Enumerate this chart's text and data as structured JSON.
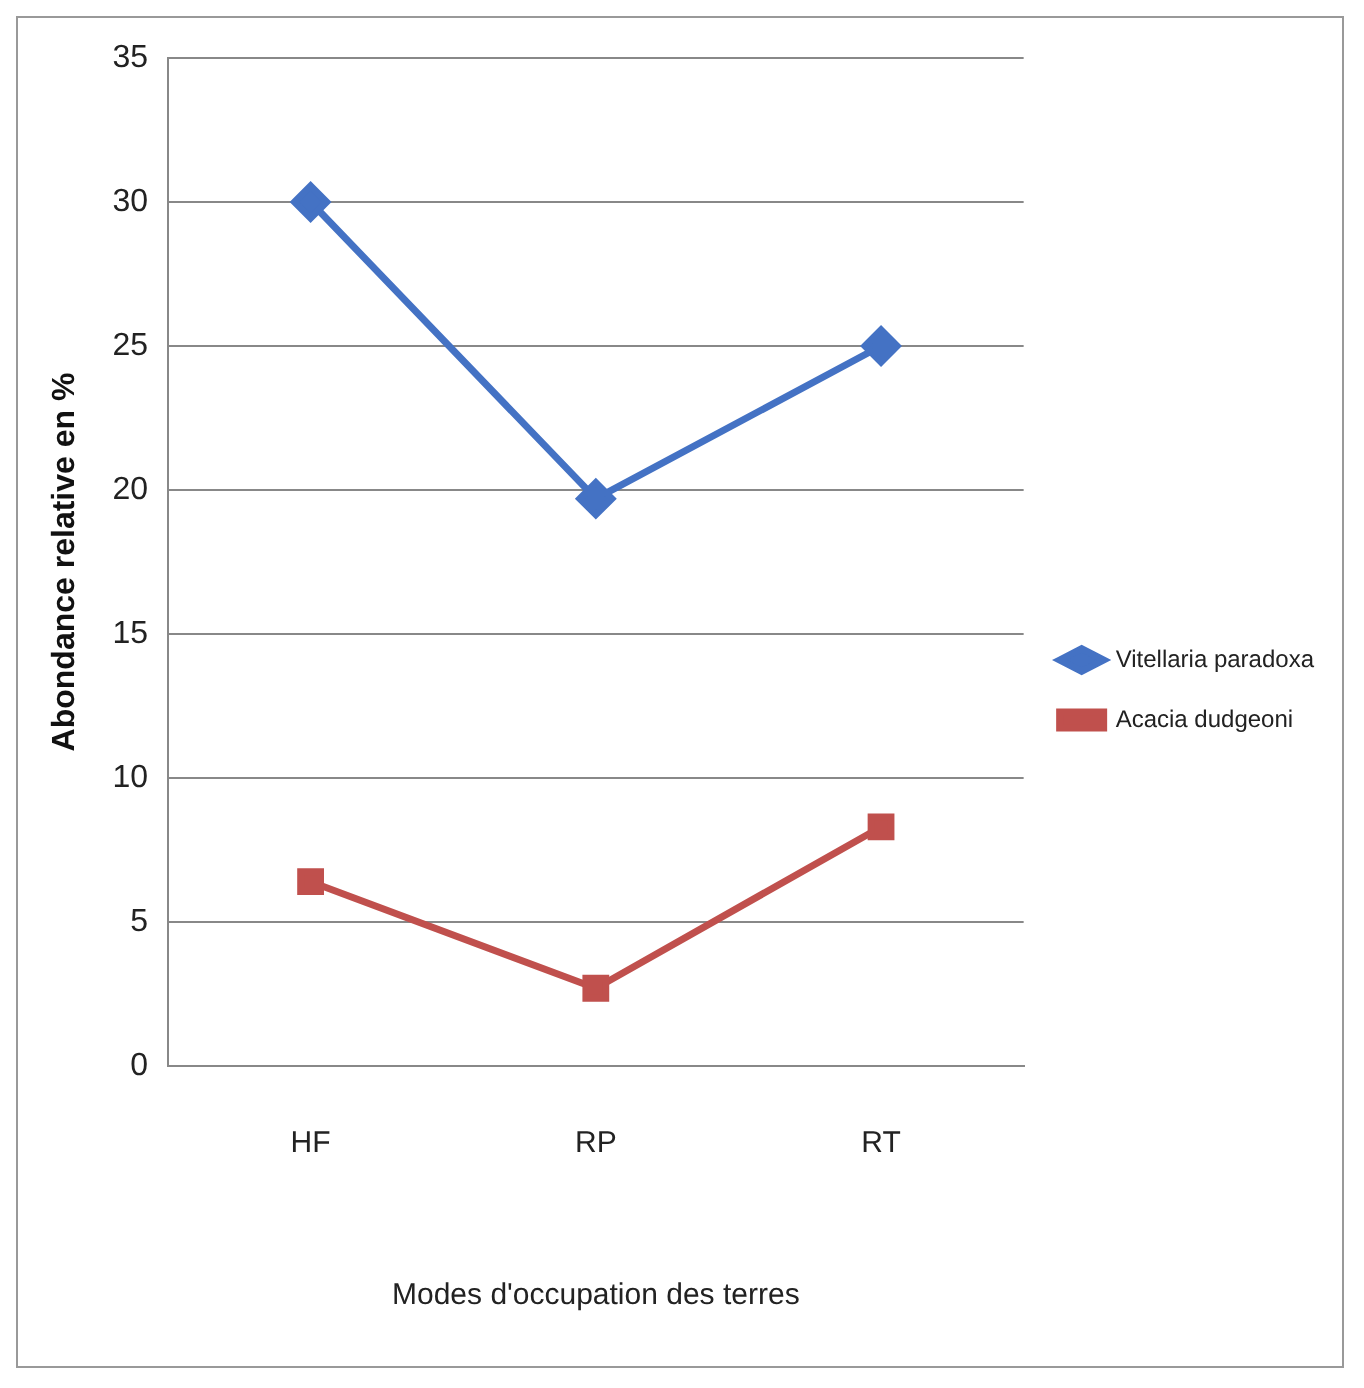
{
  "chart_data": {
    "type": "line",
    "xlabel": "Modes d'occupation des terres",
    "ylabel": "Abondance relative en %",
    "categories": [
      "HF",
      "RP",
      "RT"
    ],
    "series": [
      {
        "name": "Vitellaria paradoxa",
        "color": "#4472c4",
        "marker": "diamond",
        "values": [
          30,
          19.7,
          25
        ]
      },
      {
        "name": "Acacia dudgeoni",
        "color": "#c0504d",
        "marker": "square",
        "values": [
          6.4,
          2.7,
          8.3
        ]
      }
    ],
    "ylim": [
      0,
      35
    ],
    "yticks": [
      0,
      5,
      10,
      15,
      20,
      25,
      30,
      35
    ],
    "grid": "y",
    "legend": "right",
    "line_style": "solid"
  }
}
